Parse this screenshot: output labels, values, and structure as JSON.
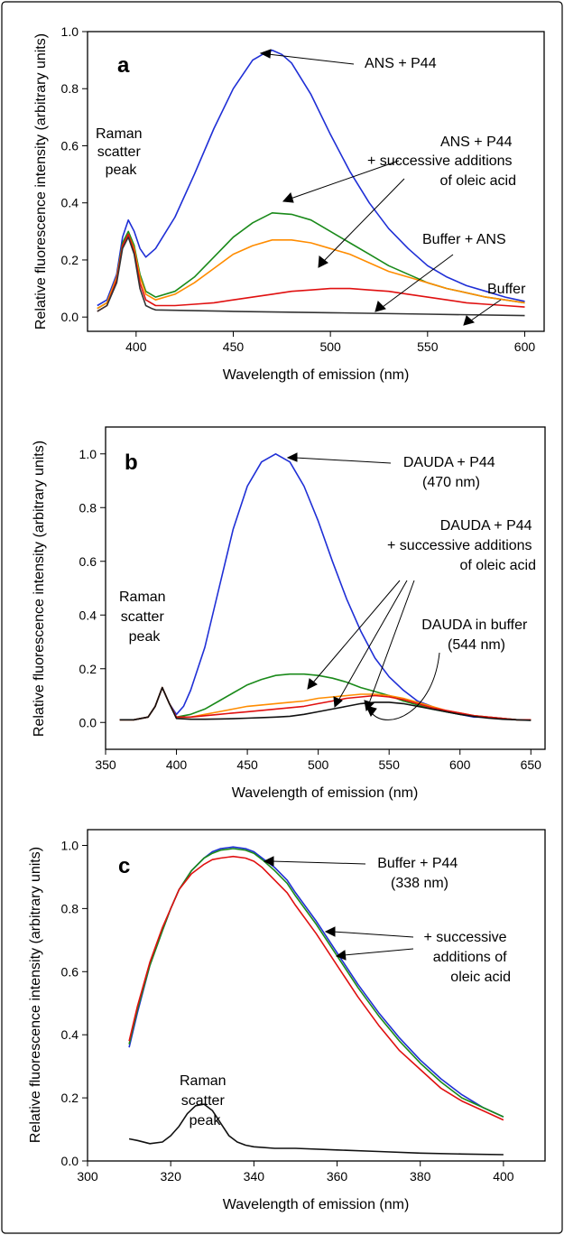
{
  "chart_data": [
    {
      "panel": "a",
      "type": "line",
      "xlabel": "Wavelength of emission (nm)",
      "ylabel": "Relative fluorescence intensity (arbitrary units)",
      "xlim": [
        375,
        610
      ],
      "ylim": [
        -0.05,
        1.0
      ],
      "xticks": [
        400,
        450,
        500,
        550,
        600
      ],
      "yticks": [
        0.0,
        0.2,
        0.4,
        0.6,
        0.8,
        1.0
      ],
      "annotations": [
        {
          "lines": [
            "Raman",
            "scatter",
            "peak"
          ]
        },
        {
          "lines": [
            "ANS + P44"
          ]
        },
        {
          "lines": [
            "ANS + P44",
            "+ successive additions",
            "of oleic acid"
          ]
        },
        {
          "lines": [
            "Buffer + ANS"
          ]
        },
        {
          "lines": [
            "Buffer"
          ]
        }
      ],
      "series": [
        {
          "color": "#1f2fd6",
          "x": [
            380,
            385,
            390,
            393,
            396,
            399,
            402,
            405,
            410,
            420,
            430,
            440,
            450,
            460,
            465,
            470,
            475,
            480,
            490,
            500,
            510,
            520,
            530,
            540,
            550,
            560,
            570,
            580,
            590,
            600
          ],
          "y": [
            0.04,
            0.06,
            0.15,
            0.28,
            0.34,
            0.3,
            0.24,
            0.21,
            0.24,
            0.35,
            0.5,
            0.66,
            0.8,
            0.9,
            0.92,
            0.935,
            0.92,
            0.89,
            0.78,
            0.64,
            0.51,
            0.4,
            0.31,
            0.24,
            0.18,
            0.14,
            0.11,
            0.09,
            0.07,
            0.055
          ]
        },
        {
          "color": "#1a8a1a",
          "x": [
            380,
            385,
            390,
            393,
            396,
            399,
            402,
            405,
            410,
            420,
            430,
            440,
            450,
            460,
            470,
            480,
            490,
            500,
            510,
            520,
            530,
            540,
            550,
            560,
            570,
            580,
            590,
            600
          ],
          "y": [
            0.03,
            0.05,
            0.14,
            0.26,
            0.3,
            0.25,
            0.15,
            0.09,
            0.07,
            0.09,
            0.14,
            0.21,
            0.28,
            0.33,
            0.365,
            0.36,
            0.34,
            0.3,
            0.26,
            0.22,
            0.18,
            0.15,
            0.12,
            0.1,
            0.085,
            0.07,
            0.06,
            0.05
          ]
        },
        {
          "color": "#ff8c00",
          "x": [
            380,
            385,
            390,
            393,
            396,
            399,
            402,
            405,
            410,
            420,
            430,
            440,
            450,
            460,
            470,
            480,
            490,
            500,
            510,
            520,
            530,
            540,
            550,
            560,
            570,
            580,
            590,
            600
          ],
          "y": [
            0.03,
            0.05,
            0.14,
            0.25,
            0.29,
            0.24,
            0.14,
            0.08,
            0.06,
            0.08,
            0.12,
            0.17,
            0.22,
            0.25,
            0.27,
            0.27,
            0.26,
            0.24,
            0.22,
            0.19,
            0.16,
            0.14,
            0.12,
            0.1,
            0.085,
            0.07,
            0.06,
            0.05
          ]
        },
        {
          "color": "#e01010",
          "x": [
            380,
            385,
            390,
            393,
            396,
            399,
            402,
            405,
            410,
            420,
            430,
            440,
            450,
            460,
            470,
            480,
            490,
            500,
            510,
            520,
            530,
            540,
            550,
            560,
            570,
            580,
            590,
            600
          ],
          "y": [
            0.02,
            0.04,
            0.13,
            0.25,
            0.29,
            0.23,
            0.12,
            0.06,
            0.04,
            0.04,
            0.045,
            0.05,
            0.06,
            0.07,
            0.08,
            0.09,
            0.095,
            0.1,
            0.1,
            0.095,
            0.09,
            0.08,
            0.07,
            0.06,
            0.05,
            0.045,
            0.04,
            0.035
          ]
        },
        {
          "color": "#333333",
          "x": [
            380,
            385,
            390,
            393,
            396,
            399,
            402,
            405,
            408,
            410,
            450,
            500,
            550,
            600
          ],
          "y": [
            0.02,
            0.04,
            0.12,
            0.24,
            0.28,
            0.22,
            0.1,
            0.04,
            0.03,
            0.025,
            0.02,
            0.015,
            0.01,
            0.005
          ]
        }
      ]
    },
    {
      "panel": "b",
      "type": "line",
      "xlabel": "Wavelength of emission (nm)",
      "ylabel": "Relative fluorescence intensity (arbitrary units)",
      "xlim": [
        350,
        660
      ],
      "ylim": [
        -0.1,
        1.1
      ],
      "xticks": [
        350,
        400,
        450,
        500,
        550,
        600,
        650
      ],
      "yticks": [
        0.0,
        0.2,
        0.4,
        0.6,
        0.8,
        1.0
      ],
      "annotations": [
        {
          "lines": [
            "Raman",
            "scatter",
            "peak"
          ]
        },
        {
          "lines": [
            "DAUDA + P44",
            "(470 nm)"
          ]
        },
        {
          "lines": [
            "DAUDA + P44",
            "+ successive additions",
            "of oleic acid"
          ]
        },
        {
          "lines": [
            "DAUDA in buffer",
            "(544 nm)"
          ]
        }
      ],
      "series": [
        {
          "color": "#1f2fd6",
          "x": [
            360,
            370,
            380,
            385,
            390,
            395,
            400,
            405,
            410,
            420,
            430,
            440,
            450,
            460,
            470,
            480,
            490,
            500,
            510,
            520,
            530,
            540,
            550,
            560,
            570,
            580,
            590,
            600,
            610,
            620,
            630,
            640,
            650
          ],
          "y": [
            0.01,
            0.01,
            0.02,
            0.06,
            0.13,
            0.07,
            0.03,
            0.06,
            0.12,
            0.28,
            0.5,
            0.72,
            0.88,
            0.97,
            1.0,
            0.97,
            0.88,
            0.75,
            0.6,
            0.46,
            0.34,
            0.24,
            0.17,
            0.12,
            0.08,
            0.06,
            0.04,
            0.03,
            0.02,
            0.02,
            0.015,
            0.01,
            0.01
          ]
        },
        {
          "color": "#1a8a1a",
          "x": [
            360,
            370,
            380,
            385,
            390,
            395,
            400,
            410,
            420,
            430,
            440,
            450,
            460,
            470,
            480,
            490,
            500,
            510,
            520,
            530,
            540,
            550,
            560,
            570,
            580,
            590,
            600,
            610,
            620,
            630,
            640,
            650
          ],
          "y": [
            0.01,
            0.01,
            0.02,
            0.06,
            0.13,
            0.07,
            0.02,
            0.03,
            0.05,
            0.08,
            0.11,
            0.14,
            0.16,
            0.175,
            0.18,
            0.18,
            0.175,
            0.165,
            0.15,
            0.13,
            0.115,
            0.1,
            0.08,
            0.065,
            0.05,
            0.04,
            0.03,
            0.025,
            0.02,
            0.015,
            0.01,
            0.01
          ]
        },
        {
          "color": "#ff8c00",
          "x": [
            360,
            370,
            380,
            385,
            390,
            395,
            400,
            410,
            420,
            430,
            440,
            450,
            460,
            470,
            480,
            490,
            500,
            510,
            520,
            530,
            540,
            550,
            560,
            570,
            580,
            590,
            600,
            610,
            620,
            630,
            640,
            650
          ],
          "y": [
            0.01,
            0.01,
            0.02,
            0.06,
            0.13,
            0.07,
            0.02,
            0.02,
            0.03,
            0.04,
            0.05,
            0.06,
            0.065,
            0.07,
            0.075,
            0.08,
            0.09,
            0.095,
            0.1,
            0.105,
            0.105,
            0.1,
            0.09,
            0.075,
            0.06,
            0.045,
            0.035,
            0.025,
            0.02,
            0.015,
            0.01,
            0.01
          ]
        },
        {
          "color": "#e01010",
          "x": [
            360,
            370,
            380,
            385,
            390,
            395,
            400,
            410,
            420,
            430,
            440,
            450,
            460,
            470,
            480,
            490,
            500,
            510,
            520,
            530,
            540,
            550,
            560,
            570,
            580,
            590,
            600,
            610,
            620,
            630,
            640,
            650
          ],
          "y": [
            0.01,
            0.01,
            0.02,
            0.06,
            0.13,
            0.07,
            0.02,
            0.02,
            0.025,
            0.03,
            0.035,
            0.04,
            0.045,
            0.05,
            0.055,
            0.06,
            0.07,
            0.08,
            0.09,
            0.095,
            0.1,
            0.095,
            0.085,
            0.07,
            0.055,
            0.045,
            0.035,
            0.025,
            0.02,
            0.015,
            0.01,
            0.01
          ]
        },
        {
          "color": "#111111",
          "x": [
            360,
            370,
            380,
            385,
            390,
            395,
            400,
            410,
            420,
            430,
            440,
            450,
            460,
            470,
            480,
            490,
            500,
            510,
            520,
            530,
            540,
            550,
            560,
            570,
            580,
            590,
            600,
            610,
            620,
            630,
            640,
            650
          ],
          "y": [
            0.01,
            0.01,
            0.02,
            0.06,
            0.13,
            0.07,
            0.015,
            0.012,
            0.012,
            0.013,
            0.014,
            0.016,
            0.018,
            0.02,
            0.023,
            0.03,
            0.04,
            0.05,
            0.06,
            0.07,
            0.075,
            0.075,
            0.07,
            0.06,
            0.05,
            0.04,
            0.03,
            0.022,
            0.016,
            0.012,
            0.01,
            0.008
          ]
        }
      ]
    },
    {
      "panel": "c",
      "type": "line",
      "xlabel": "Wavelength of emission (nm)",
      "ylabel": "Relative fluorescence intensity (arbitrary units)",
      "xlim": [
        300,
        410
      ],
      "ylim": [
        0.0,
        1.05
      ],
      "xticks": [
        300,
        320,
        340,
        360,
        380,
        400
      ],
      "yticks": [
        0.0,
        0.2,
        0.4,
        0.6,
        0.8,
        1.0
      ],
      "annotations": [
        {
          "lines": [
            "Buffer + P44",
            "(338 nm)"
          ]
        },
        {
          "lines": [
            "+ successive",
            "additions of",
            "oleic acid"
          ]
        },
        {
          "lines": [
            "Raman",
            "scatter",
            "peak"
          ]
        }
      ],
      "series": [
        {
          "color": "#1f2fd6",
          "x": [
            310,
            312,
            315,
            318,
            320,
            322,
            325,
            328,
            330,
            332,
            335,
            338,
            340,
            342,
            345,
            348,
            350,
            355,
            360,
            365,
            370,
            375,
            380,
            385,
            390,
            395,
            400
          ],
          "y": [
            0.36,
            0.47,
            0.62,
            0.73,
            0.8,
            0.86,
            0.92,
            0.96,
            0.98,
            0.99,
            0.995,
            0.99,
            0.98,
            0.96,
            0.93,
            0.89,
            0.85,
            0.76,
            0.66,
            0.56,
            0.47,
            0.39,
            0.32,
            0.26,
            0.21,
            0.17,
            0.14
          ]
        },
        {
          "color": "#1a8a1a",
          "x": [
            310,
            312,
            315,
            318,
            320,
            322,
            325,
            328,
            330,
            332,
            335,
            338,
            340,
            342,
            345,
            348,
            350,
            355,
            360,
            365,
            370,
            375,
            380,
            385,
            390,
            395,
            400
          ],
          "y": [
            0.37,
            0.48,
            0.62,
            0.73,
            0.8,
            0.86,
            0.92,
            0.96,
            0.975,
            0.985,
            0.99,
            0.985,
            0.975,
            0.955,
            0.92,
            0.88,
            0.84,
            0.75,
            0.65,
            0.55,
            0.46,
            0.38,
            0.31,
            0.25,
            0.2,
            0.17,
            0.14
          ]
        },
        {
          "color": "#e01010",
          "x": [
            310,
            312,
            315,
            318,
            320,
            322,
            325,
            328,
            330,
            332,
            335,
            338,
            340,
            342,
            345,
            348,
            350,
            355,
            360,
            365,
            370,
            375,
            380,
            385,
            390,
            395,
            400
          ],
          "y": [
            0.38,
            0.49,
            0.63,
            0.74,
            0.8,
            0.86,
            0.91,
            0.94,
            0.955,
            0.96,
            0.965,
            0.96,
            0.95,
            0.93,
            0.89,
            0.85,
            0.81,
            0.72,
            0.62,
            0.52,
            0.43,
            0.35,
            0.29,
            0.23,
            0.19,
            0.16,
            0.13
          ]
        },
        {
          "color": "#111111",
          "x": [
            310,
            312,
            315,
            318,
            320,
            322,
            324,
            326,
            328,
            330,
            332,
            334,
            336,
            338,
            340,
            345,
            350,
            360,
            370,
            380,
            390,
            400
          ],
          "y": [
            0.07,
            0.065,
            0.055,
            0.06,
            0.08,
            0.11,
            0.15,
            0.175,
            0.18,
            0.16,
            0.12,
            0.08,
            0.06,
            0.05,
            0.045,
            0.04,
            0.04,
            0.035,
            0.03,
            0.025,
            0.022,
            0.02
          ]
        }
      ]
    }
  ]
}
